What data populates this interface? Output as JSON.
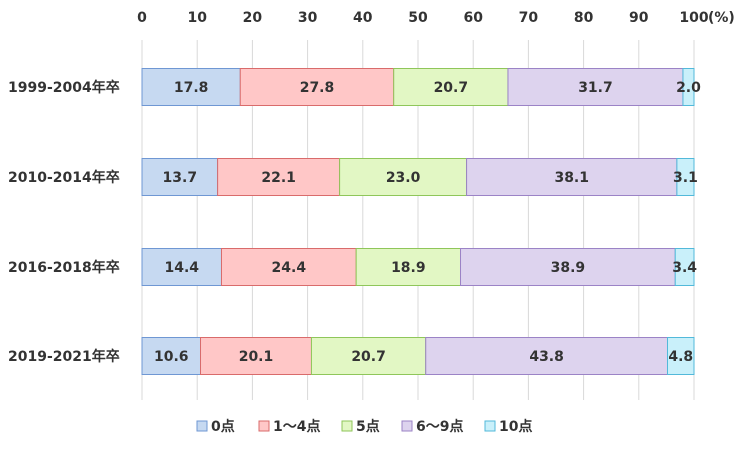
{
  "chart_data": {
    "type": "bar",
    "orientation": "horizontal",
    "stacked": true,
    "x_axis_position": "top",
    "xlim": [
      0,
      100
    ],
    "x_ticks": [
      "0",
      "10",
      "20",
      "30",
      "40",
      "50",
      "60",
      "70",
      "80",
      "90",
      "100"
    ],
    "x_unit": "(%)",
    "grid": "vertical",
    "legend_position": "bottom",
    "categories": [
      "1999-2004年卒",
      "2010-2014年卒",
      "2016-2018年卒",
      "2019-2021年卒"
    ],
    "series": [
      {
        "name": "0点",
        "color": "#c6d9f1",
        "border": "#6f97d3",
        "values": [
          17.8,
          13.7,
          14.4,
          10.6
        ]
      },
      {
        "name": "1～4点",
        "color": "#ffc7c7",
        "border": "#d96b6b",
        "values": [
          27.8,
          22.1,
          24.4,
          20.1
        ]
      },
      {
        "name": "5点",
        "color": "#e2f7c4",
        "border": "#8fc65a",
        "values": [
          20.7,
          23.0,
          18.9,
          20.7
        ]
      },
      {
        "name": "6～9点",
        "color": "#ddd3ee",
        "border": "#9b83c6",
        "values": [
          31.7,
          38.1,
          38.9,
          43.8
        ]
      },
      {
        "name": "10点",
        "color": "#c9f0fa",
        "border": "#52b9da",
        "values": [
          2.0,
          3.1,
          3.4,
          4.8
        ]
      }
    ],
    "data_labels": [
      [
        "17.8",
        "27.8",
        "20.7",
        "31.7",
        "2.0"
      ],
      [
        "13.7",
        "22.1",
        "23.0",
        "38.1",
        "3.1"
      ],
      [
        "14.4",
        "24.4",
        "18.9",
        "38.9",
        "3.4"
      ],
      [
        "10.6",
        "20.1",
        "20.7",
        "43.8",
        "4.8"
      ]
    ]
  }
}
